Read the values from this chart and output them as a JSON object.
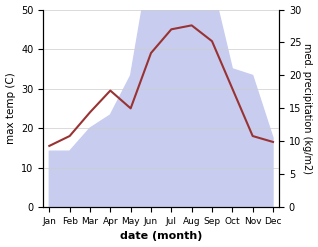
{
  "months": [
    "Jan",
    "Feb",
    "Mar",
    "Apr",
    "May",
    "Jun",
    "Jul",
    "Aug",
    "Sep",
    "Oct",
    "Nov",
    "Dec"
  ],
  "temperature": [
    15.5,
    18.0,
    24.0,
    29.5,
    25.0,
    39.0,
    45.0,
    46.0,
    42.0,
    30.0,
    18.0,
    16.5
  ],
  "precipitation": [
    8.5,
    8.5,
    12.0,
    14.0,
    20.0,
    38.0,
    48.0,
    46.0,
    34.0,
    21.0,
    20.0,
    10.5
  ],
  "temp_color": "#993333",
  "precip_fill_color": "#c8cdf0",
  "temp_ylim": [
    0,
    50
  ],
  "precip_ylim": [
    0,
    30
  ],
  "xlabel": "date (month)",
  "ylabel_left": "max temp (C)",
  "ylabel_right": "med. precipitation (kg/m2)",
  "bg_color": "#ffffff",
  "grid_color": "#cccccc",
  "temp_linewidth": 1.5,
  "left_yticks": [
    0,
    10,
    20,
    30,
    40,
    50
  ],
  "right_yticks": [
    0,
    5,
    10,
    15,
    20,
    25,
    30
  ]
}
